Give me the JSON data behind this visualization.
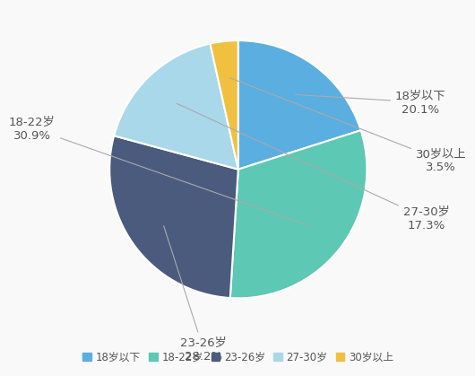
{
  "labels": [
    "18岁以下",
    "18-22岁",
    "23-26岁",
    "27-30岁",
    "30岁以上"
  ],
  "values": [
    20.1,
    30.9,
    28.2,
    17.3,
    3.5
  ],
  "colors": [
    "#5BAEE0",
    "#5DC8B4",
    "#4B5B7E",
    "#A8D8EA",
    "#F0C040"
  ],
  "label_texts": [
    "18岁以下\n20.1%",
    "18-22岁\n30.9%",
    "23-26岁\n28.2%",
    "27-30岁\n17.3%",
    "30岁以上\n3.5%"
  ],
  "startangle": 90,
  "background_color": "#f9f9f9",
  "legend_labels": [
    "18岁以下",
    "18-22岁",
    "23-26岁",
    "27-30岁",
    "30岁以上"
  ],
  "font_size": 10,
  "label_fontsize": 9.5
}
